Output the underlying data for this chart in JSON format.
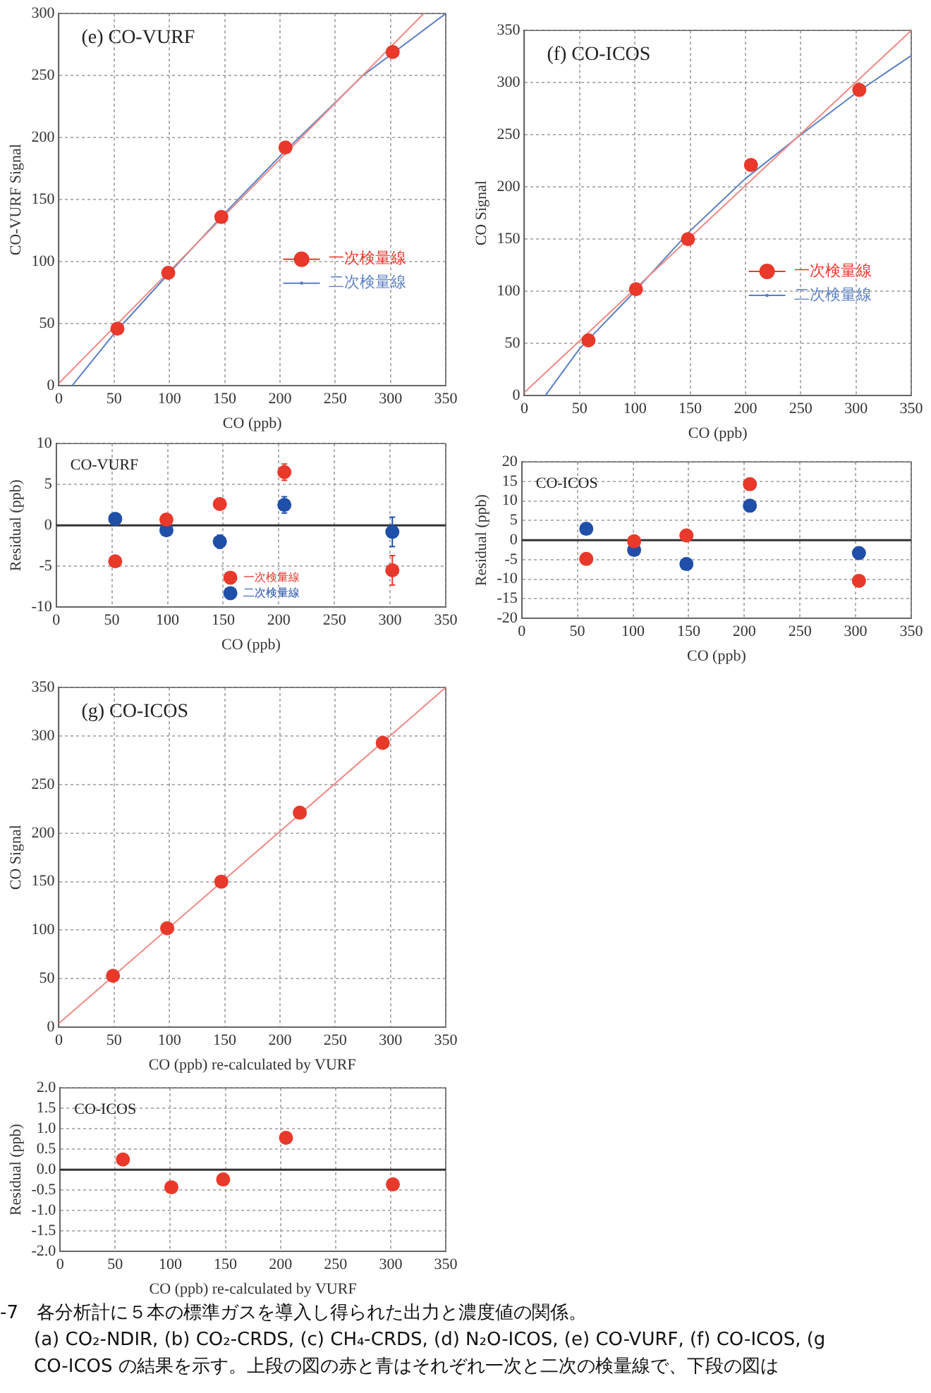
{
  "chart_data": [
    {
      "type": "scatter",
      "title": "(e) CO-VURF",
      "xlabel": "CO (ppb)",
      "ylabel": "CO-VURF Signal",
      "xlim": [
        0,
        350
      ],
      "xticks": [
        0,
        50,
        100,
        150,
        200,
        250,
        300,
        350
      ],
      "ylim": [
        0,
        300
      ],
      "yticks": [
        0,
        50,
        100,
        150,
        200,
        250,
        300
      ],
      "grid": true,
      "legend": "right",
      "series": [
        {
          "name": "一次検量線",
          "type": "scatter",
          "marker": "circle",
          "color": "#e8392b",
          "x": [
            53,
            99,
            147,
            205,
            302
          ],
          "values": [
            46,
            91,
            136,
            192,
            269
          ]
        },
        {
          "type": "line",
          "marker": "none",
          "color": "#f08a84",
          "x": [
            0,
            330
          ],
          "values": [
            2,
            300
          ]
        },
        {
          "name": "二次検量線",
          "type": "line",
          "marker": "none",
          "color": "#5b7fc4",
          "x": [
            12,
            50,
            100,
            150,
            200,
            275,
            350
          ],
          "values": [
            0,
            42,
            91,
            139,
            185,
            250,
            300
          ]
        }
      ]
    },
    {
      "type": "scatter",
      "title": "(f) CO-ICOS",
      "xlabel": "CO (ppb)",
      "ylabel": "CO Signal",
      "xlim": [
        0,
        350
      ],
      "xticks": [
        0,
        50,
        100,
        150,
        200,
        250,
        300,
        350
      ],
      "ylim": [
        0,
        350
      ],
      "yticks": [
        0,
        50,
        100,
        150,
        200,
        250,
        300,
        350
      ],
      "grid": true,
      "legend": "right",
      "series": [
        {
          "name": "一次検量線",
          "type": "scatter",
          "marker": "circle",
          "color": "#e8392b",
          "x": [
            58,
            101,
            148,
            205,
            303
          ],
          "values": [
            53,
            102,
            150,
            221,
            293
          ]
        },
        {
          "type": "line",
          "marker": "none",
          "color": "#f08a84",
          "x": [
            0,
            350
          ],
          "values": [
            3,
            350
          ]
        },
        {
          "name": "二次検量線",
          "type": "line",
          "marker": "none",
          "color": "#5b7fc4",
          "x": [
            19,
            50,
            100,
            150,
            200,
            250,
            300,
            350
          ],
          "values": [
            0,
            45,
            100,
            158,
            208,
            250,
            290,
            326
          ]
        }
      ]
    },
    {
      "type": "scatter",
      "title": "CO-VURF",
      "xlabel": "CO (ppb)",
      "ylabel": "Residual (ppb)",
      "xlim": [
        0,
        350
      ],
      "xticks": [
        0,
        50,
        100,
        150,
        200,
        250,
        300,
        350
      ],
      "ylim": [
        -10,
        10
      ],
      "yticks": [
        -10,
        -5,
        0,
        5,
        10
      ],
      "grid": true,
      "legend": "bottom",
      "ref_lines": [
        {
          "axis": "y",
          "value": 0,
          "color": "#333333"
        }
      ],
      "series": [
        {
          "name": "一次検量線",
          "type": "scatter",
          "marker": "circle",
          "color": "#e8392b",
          "x": [
            53,
            99,
            147,
            205,
            302
          ],
          "values": [
            -4.4,
            0.7,
            2.6,
            6.5,
            -5.5
          ],
          "errors": [
            null,
            null,
            null,
            1,
            1.8
          ]
        },
        {
          "name": "二次検量線",
          "type": "scatter",
          "marker": "circle",
          "color": "#1f4fa8",
          "x": [
            53,
            99,
            147,
            205,
            302
          ],
          "values": [
            0.8,
            -0.6,
            -2.0,
            2.5,
            -0.8
          ],
          "errors": [
            null,
            null,
            0.8,
            1,
            1.8
          ]
        }
      ]
    },
    {
      "type": "scatter",
      "title": "CO-ICOS",
      "xlabel": "CO (ppb)",
      "ylabel": "Residual (ppb)",
      "xlim": [
        0,
        350
      ],
      "xticks": [
        0,
        50,
        100,
        150,
        200,
        250,
        300,
        350
      ],
      "ylim": [
        -20,
        20
      ],
      "yticks": [
        -20,
        -15,
        -10,
        -5,
        0,
        5,
        10,
        15,
        20
      ],
      "grid": true,
      "ref_lines": [
        {
          "axis": "y",
          "value": 0,
          "color": "#333333"
        }
      ],
      "series": [
        {
          "type": "scatter",
          "marker": "circle",
          "color": "#e8392b",
          "x": [
            58,
            101,
            148,
            205,
            303
          ],
          "values": [
            -4.8,
            -0.3,
            1.2,
            14.3,
            -10.4
          ]
        },
        {
          "type": "scatter",
          "marker": "circle",
          "color": "#1f4fa8",
          "x": [
            58,
            101,
            148,
            205,
            303
          ],
          "values": [
            2.9,
            -2.5,
            -6.1,
            8.8,
            -3.3
          ]
        }
      ]
    },
    {
      "type": "scatter",
      "title": "(g) CO-ICOS",
      "xlabel": "CO (ppb) re-calculated by VURF",
      "ylabel": "CO Signal",
      "xlim": [
        0,
        350
      ],
      "xticks": [
        0,
        50,
        100,
        150,
        200,
        250,
        300,
        350
      ],
      "ylim": [
        0,
        350
      ],
      "yticks": [
        0,
        50,
        100,
        150,
        200,
        250,
        300,
        350
      ],
      "grid": true,
      "series": [
        {
          "type": "scatter",
          "marker": "circle",
          "color": "#e8392b",
          "x": [
            49,
            98,
            147,
            218,
            293
          ],
          "values": [
            53,
            102,
            150,
            221,
            293
          ]
        },
        {
          "type": "line",
          "marker": "none",
          "color": "#f08a84",
          "x": [
            0,
            350
          ],
          "values": [
            4,
            350
          ]
        }
      ]
    },
    {
      "type": "scatter",
      "title": "CO-ICOS",
      "xlabel": "CO (ppb) re-calculated by VURF",
      "ylabel": "Residual (ppb)",
      "xlim": [
        0,
        350
      ],
      "xticks": [
        0,
        50,
        100,
        150,
        200,
        250,
        300,
        350
      ],
      "ylim": [
        -2,
        2
      ],
      "yticks": [
        {
          "value": -2,
          "label": "-2.0"
        },
        {
          "value": -1.5,
          "label": "-1.5"
        },
        {
          "value": -1,
          "label": "-1.0"
        },
        {
          "value": -0.5,
          "label": "-0.5"
        },
        {
          "value": 0,
          "label": "0.0"
        },
        {
          "value": 0.5,
          "label": "0.5"
        },
        {
          "value": 1,
          "label": "1.0"
        },
        {
          "value": 1.5,
          "label": "1.5"
        },
        {
          "value": 2,
          "label": "2.0"
        }
      ],
      "grid": true,
      "ref_lines": [
        {
          "axis": "y",
          "value": 0,
          "color": "#333333"
        }
      ],
      "series": [
        {
          "type": "scatter",
          "marker": "circle",
          "color": "#e8392b",
          "x": [
            57,
            101,
            148,
            205,
            302
          ],
          "values": [
            0.25,
            -0.43,
            -0.24,
            0.78,
            -0.36
          ]
        }
      ]
    },
    {
      "type": "other",
      "annotations": [
        "-7　各分析計に５本の標準ガスを導入し得られた出力と濃度値の関係。",
        "(a) CO₂-NDIR, (b) CO₂-CRDS, (c) CH₄-CRDS, (d) N₂O-ICOS, (e) CO-VURF, (f) CO-ICOS, (g",
        "CO-ICOS の結果を示す。上段の図の赤と青はそれぞれ一次と二次の検量線で、下段の図は"
      ]
    }
  ]
}
